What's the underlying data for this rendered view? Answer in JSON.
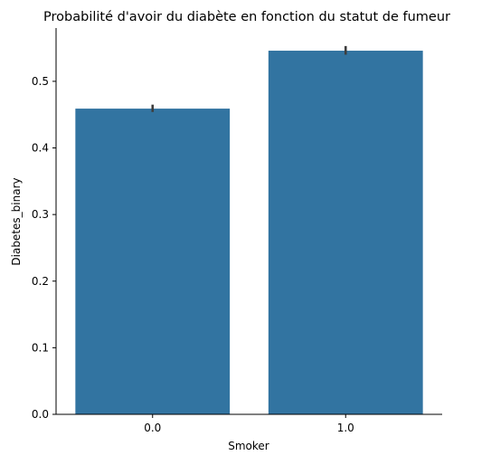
{
  "chart_data": {
    "type": "bar",
    "title": "Probabilité d'avoir du diabète en fonction du statut de fumeur",
    "xlabel": "Smoker",
    "ylabel": "Diabetes_binary",
    "categories": [
      "0.0",
      "1.0"
    ],
    "values": [
      0.459,
      0.546
    ],
    "error_bars": [
      [
        0.454,
        0.465
      ],
      [
        0.54,
        0.553
      ]
    ],
    "ylim": [
      0,
      0.58
    ],
    "yticks": [
      "0.0",
      "0.1",
      "0.2",
      "0.3",
      "0.4",
      "0.5"
    ],
    "grid": false,
    "legend": "none",
    "bar_color": "#3274a1",
    "error_bar_color": "#3d3d3d"
  }
}
